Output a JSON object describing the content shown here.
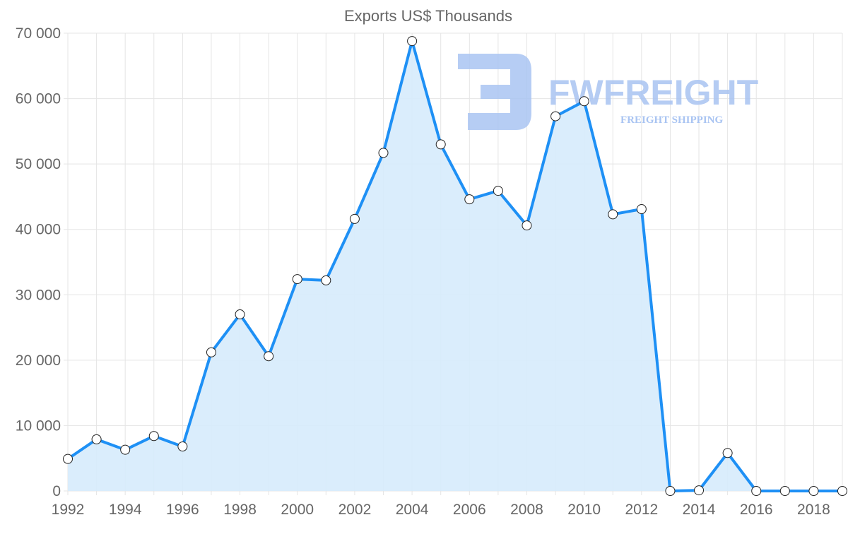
{
  "watermark": {
    "brand": "FWFREIGHT",
    "tagline": "FREIGHT SHIPPING"
  },
  "colors": {
    "line": "#1e90f5",
    "fill": "#d6ebfc",
    "grid": "#e5e5e5"
  },
  "chart_data": {
    "type": "area",
    "title": "Exports US$ Thousands",
    "xlabel": "",
    "ylabel": "",
    "x": [
      1992,
      1993,
      1994,
      1995,
      1996,
      1997,
      1998,
      1999,
      2000,
      2001,
      2002,
      2003,
      2004,
      2005,
      2006,
      2007,
      2008,
      2009,
      2010,
      2011,
      2012,
      2013,
      2014,
      2015,
      2016,
      2017,
      2018,
      2019
    ],
    "values": [
      4900,
      7900,
      6300,
      8400,
      6800,
      21200,
      27000,
      20600,
      32400,
      32200,
      41600,
      51700,
      68800,
      53000,
      44600,
      45900,
      40600,
      57300,
      59600,
      42300,
      43100,
      0,
      100,
      5800,
      0,
      0,
      0,
      0
    ],
    "ylim": [
      0,
      70000
    ],
    "yticks": [
      "0",
      "10 000",
      "20 000",
      "30 000",
      "40 000",
      "50 000",
      "60 000",
      "70 000"
    ],
    "xticks": [
      "1992",
      "1994",
      "1996",
      "1998",
      "2000",
      "2002",
      "2004",
      "2006",
      "2008",
      "2010",
      "2012",
      "2014",
      "2016",
      "2018"
    ],
    "grid": true,
    "legend": "none"
  }
}
